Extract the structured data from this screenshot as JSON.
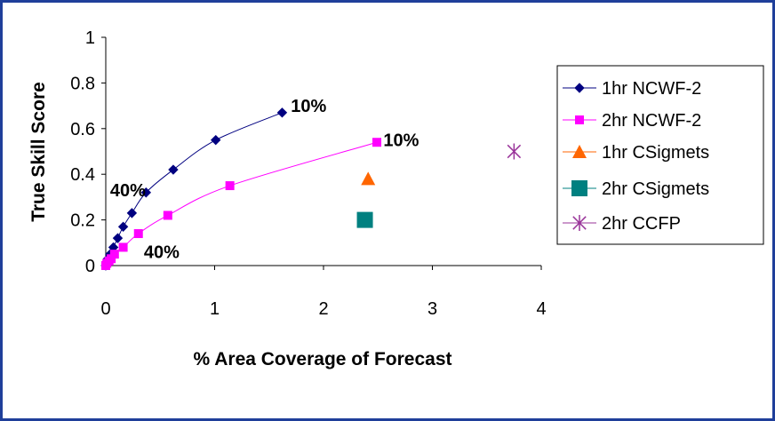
{
  "chart_data": {
    "type": "scatter",
    "title": "",
    "xlabel": "% Area Coverage of Forecast",
    "ylabel": "True Skill Score",
    "xlim": [
      0,
      4
    ],
    "ylim": [
      0,
      1
    ],
    "x_ticks": [
      "0",
      "1",
      "2",
      "3",
      "4"
    ],
    "y_ticks": [
      "0",
      "0.2",
      "0.4",
      "0.6",
      "0.8",
      "1"
    ],
    "grid": false,
    "legend_position": "right",
    "series": [
      {
        "name": "1hr NCWF-2",
        "marker": "diamond",
        "color": "#000080",
        "line": true,
        "x": [
          0.0,
          0.02,
          0.04,
          0.07,
          0.11,
          0.16,
          0.24,
          0.37,
          0.62,
          1.01,
          1.62
        ],
        "y": [
          0.0,
          0.03,
          0.05,
          0.08,
          0.12,
          0.17,
          0.23,
          0.32,
          0.42,
          0.55,
          0.67
        ]
      },
      {
        "name": "2hr NCWF-2",
        "marker": "square",
        "color": "#ff00ff",
        "line": true,
        "x": [
          0.0,
          0.01,
          0.03,
          0.05,
          0.08,
          0.16,
          0.3,
          0.57,
          1.14,
          2.49
        ],
        "y": [
          0.0,
          0.01,
          0.02,
          0.03,
          0.05,
          0.08,
          0.14,
          0.22,
          0.35,
          0.54
        ]
      },
      {
        "name": "1hr CSigmets",
        "marker": "triangle",
        "color": "#ff6600",
        "line": false,
        "x": [
          2.41
        ],
        "y": [
          0.38
        ]
      },
      {
        "name": "2hr CSigmets",
        "marker": "square-large",
        "color": "#008080",
        "line": false,
        "x": [
          2.38
        ],
        "y": [
          0.2
        ]
      },
      {
        "name": "2hr CCFP",
        "marker": "asterisk",
        "color": "#993399",
        "line": false,
        "x": [
          3.75
        ],
        "y": [
          0.5
        ]
      }
    ],
    "annotations": [
      {
        "text": "10%",
        "x": 1.7,
        "y": 0.7
      },
      {
        "text": "10%",
        "x": 2.55,
        "y": 0.55
      },
      {
        "text": "40%",
        "x": 0.04,
        "y": 0.33
      },
      {
        "text": "40%",
        "x": 0.35,
        "y": 0.06
      }
    ]
  }
}
